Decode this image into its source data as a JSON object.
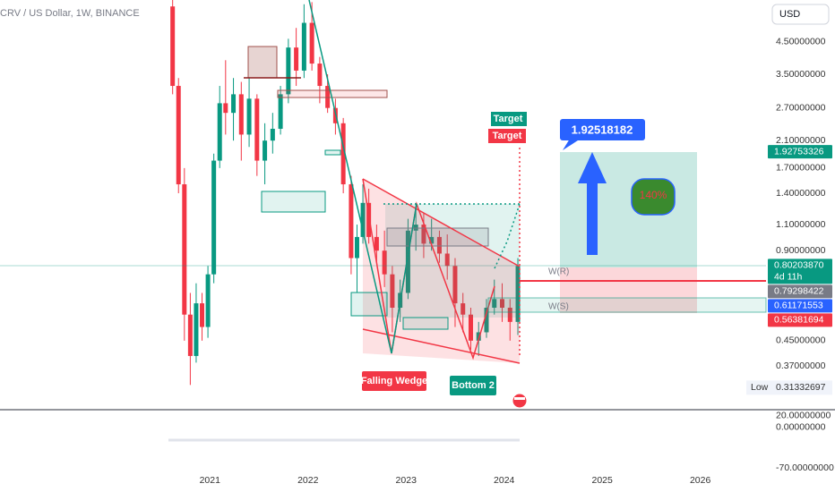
{
  "header": {
    "title": "CRV / US Dollar, 1W, BINANCE",
    "currency": "USD"
  },
  "chart_data": {
    "type": "candlestick",
    "x": [
      2020.62,
      2020.68,
      2020.74,
      2020.8,
      2020.86,
      2020.92,
      2020.98,
      2021.04,
      2021.1,
      2021.16,
      2021.24,
      2021.32,
      2021.4,
      2021.48,
      2021.56,
      2021.64,
      2021.72,
      2021.8,
      2021.88,
      2021.96,
      2022.04,
      2022.12,
      2022.2,
      2022.28,
      2022.36,
      2022.44,
      2022.5,
      2022.56,
      2022.62,
      2022.7,
      2022.78,
      2022.86,
      2022.94,
      2023.02,
      2023.1,
      2023.18,
      2023.26,
      2023.34,
      2023.42,
      2023.5,
      2023.58,
      2023.66,
      2023.74,
      2023.82,
      2023.9,
      2023.98,
      2024.06,
      2024.14
    ],
    "open": [
      5.9,
      3.2,
      1.5,
      0.55,
      0.4,
      0.6,
      0.5,
      0.75,
      1.8,
      2.8,
      2.6,
      3.0,
      2.2,
      2.9,
      1.8,
      2.1,
      2.3,
      3.0,
      4.3,
      3.6,
      5.2,
      3.8,
      3.2,
      2.7,
      2.4,
      1.5,
      0.85,
      1.0,
      1.3,
      1.0,
      0.9,
      0.75,
      0.58,
      0.65,
      1.05,
      1.1,
      0.95,
      1.0,
      0.88,
      0.8,
      0.6,
      0.55,
      0.45,
      0.48,
      0.58,
      0.62,
      0.58,
      0.52
    ],
    "high": [
      6.2,
      3.4,
      1.7,
      0.65,
      0.7,
      0.65,
      0.8,
      1.9,
      3.2,
      3.9,
      3.4,
      3.3,
      3.4,
      3.0,
      2.4,
      2.6,
      3.2,
      4.6,
      5.0,
      6.0,
      6.1,
      4.0,
      3.5,
      2.9,
      2.5,
      1.6,
      1.1,
      1.5,
      1.45,
      1.1,
      1.05,
      0.8,
      0.72,
      1.15,
      1.3,
      1.2,
      1.15,
      1.05,
      1.02,
      0.85,
      0.65,
      0.58,
      0.52,
      0.62,
      0.72,
      0.7,
      0.62,
      0.85
    ],
    "low": [
      3.0,
      1.4,
      0.45,
      0.32,
      0.38,
      0.45,
      0.46,
      0.7,
      1.7,
      2.2,
      2.1,
      1.8,
      2.0,
      1.6,
      1.5,
      1.9,
      2.2,
      2.8,
      3.2,
      3.4,
      3.6,
      2.8,
      2.6,
      2.2,
      1.4,
      0.75,
      0.65,
      0.95,
      0.95,
      0.82,
      0.68,
      0.48,
      0.52,
      0.62,
      0.9,
      0.85,
      0.9,
      0.82,
      0.72,
      0.5,
      0.48,
      0.42,
      0.4,
      0.46,
      0.55,
      0.52,
      0.45,
      0.47
    ],
    "close": [
      3.2,
      1.5,
      0.55,
      0.4,
      0.6,
      0.5,
      0.75,
      1.8,
      2.8,
      2.6,
      3.0,
      2.2,
      2.9,
      1.8,
      2.1,
      2.3,
      3.0,
      4.3,
      3.6,
      5.2,
      3.8,
      3.2,
      2.7,
      2.4,
      1.5,
      0.85,
      1.0,
      1.3,
      1.0,
      0.9,
      0.75,
      0.58,
      0.65,
      1.05,
      1.1,
      0.95,
      1.0,
      0.88,
      0.8,
      0.6,
      0.55,
      0.45,
      0.48,
      0.58,
      0.62,
      0.58,
      0.52,
      0.8
    ],
    "up_color": "#089981",
    "down_color": "#f23645",
    "log_scale": true,
    "ylim": [
      0.27,
      6.2
    ],
    "yticks": [
      {
        "value": 4.5,
        "label": "4.50000000"
      },
      {
        "value": 3.5,
        "label": "3.50000000"
      },
      {
        "value": 2.7,
        "label": "2.70000000"
      },
      {
        "value": 2.1,
        "label": "2.10000000"
      },
      {
        "value": 1.7,
        "label": "1.70000000"
      },
      {
        "value": 1.4,
        "label": "1.40000000"
      },
      {
        "value": 1.1,
        "label": "1.10000000"
      },
      {
        "value": 0.9,
        "label": "0.90000000"
      },
      {
        "value": 0.45,
        "label": "0.45000000"
      },
      {
        "value": 0.37,
        "label": "0.37000000"
      }
    ],
    "xlim": [
      2018.86,
      2026.67
    ],
    "xticks": [
      2021,
      2022,
      2023,
      2024,
      2025,
      2026
    ],
    "price_labels": [
      {
        "value": 1.92753326,
        "label": "1.92753326",
        "color": "#089981"
      },
      {
        "value": 0.8020387,
        "label": "0.80203870",
        "sublabel": "4d 11h",
        "color": "#089981"
      },
      {
        "value": 0.79298422,
        "label": "0.79298422",
        "color": "#787b86"
      },
      {
        "value": 0.61171553,
        "label": "0.61171553",
        "color": "#2962ff"
      },
      {
        "value": 0.56381694,
        "label": "0.56381694",
        "color": "#f23645"
      }
    ],
    "low_label": {
      "text": "Low",
      "value": 0.31332697,
      "label": "0.31332697"
    },
    "indicator_pane": {
      "ylim": [
        -80,
        30
      ],
      "yticks": [
        {
          "value": 20,
          "label": "20.00000000"
        },
        {
          "value": 0,
          "label": "0.00000000"
        },
        {
          "value": -70,
          "label": "-70.00000000"
        }
      ]
    }
  },
  "annotations": {
    "target_1": "Target",
    "target_2": "Target",
    "projection": "1.92518182",
    "gain": "140%",
    "pattern": "Falling Wedge",
    "bottom": "Bottom 2",
    "resistance": "W(R)",
    "support": "W(S)"
  }
}
